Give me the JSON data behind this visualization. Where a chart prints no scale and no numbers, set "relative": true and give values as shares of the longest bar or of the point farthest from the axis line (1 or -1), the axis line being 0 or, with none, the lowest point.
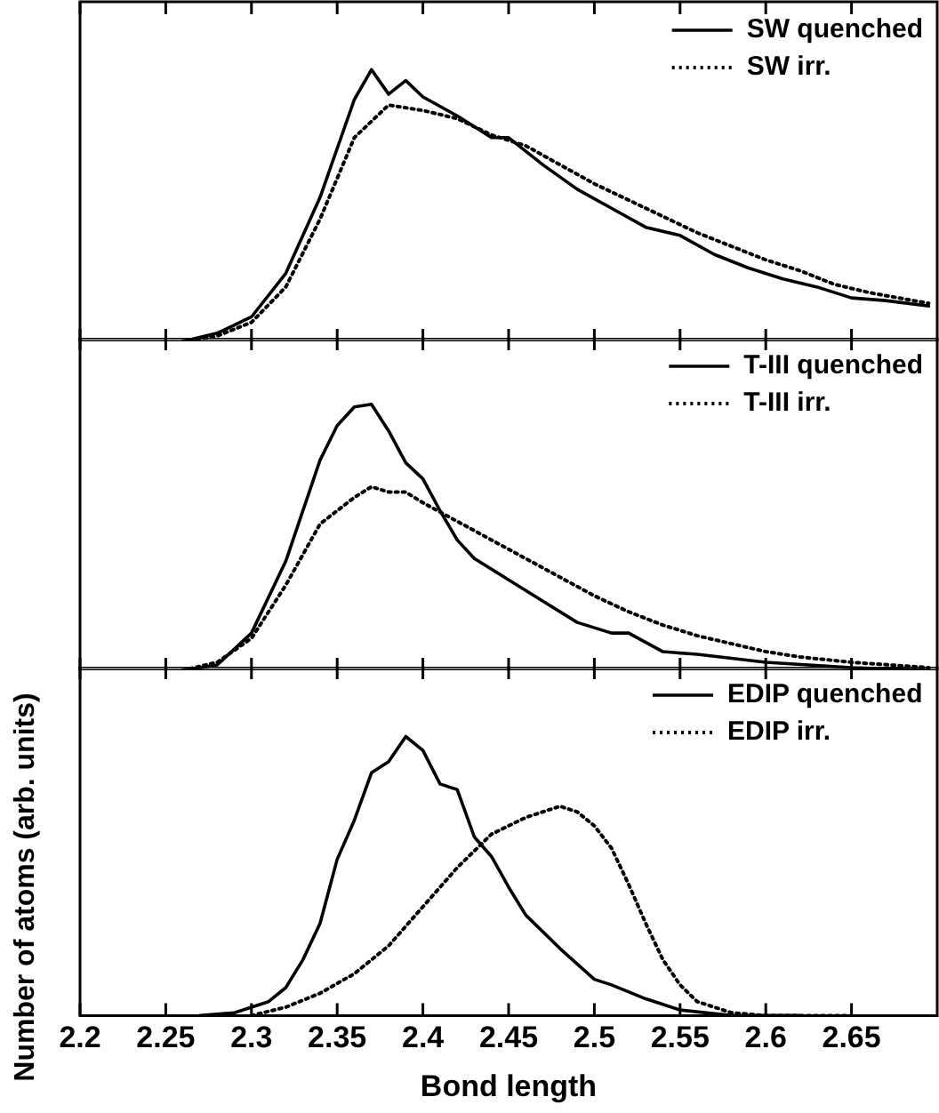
{
  "chart_data": [
    {
      "type": "line",
      "relative": true,
      "xlim": [
        2.2,
        2.7
      ],
      "xticks": [
        2.2,
        2.25,
        2.3,
        2.35,
        2.4,
        2.45,
        2.5,
        2.55,
        2.6,
        2.65
      ],
      "tick_labels": false,
      "legend": "top right",
      "marker": "none",
      "series": [
        {
          "name": "SW quenched",
          "color": "#000000",
          "line_style": "solid",
          "x": [
            2.26,
            2.28,
            2.3,
            2.32,
            2.34,
            2.35,
            2.36,
            2.37,
            2.38,
            2.39,
            2.4,
            2.42,
            2.44,
            2.45,
            2.47,
            2.49,
            2.51,
            2.53,
            2.55,
            2.57,
            2.59,
            2.61,
            2.63,
            2.65,
            2.67,
            2.695
          ],
          "values": [
            0,
            0.03,
            0.09,
            0.25,
            0.53,
            0.71,
            0.89,
            1,
            0.91,
            0.96,
            0.9,
            0.83,
            0.75,
            0.75,
            0.65,
            0.56,
            0.49,
            0.42,
            0.39,
            0.32,
            0.27,
            0.23,
            0.2,
            0.16,
            0.15,
            0.13
          ]
        },
        {
          "name": "SW irr.",
          "color": "#000000",
          "line_style": "dotted",
          "x": [
            2.26,
            2.28,
            2.3,
            2.32,
            2.34,
            2.36,
            2.38,
            2.4,
            2.42,
            2.44,
            2.46,
            2.48,
            2.5,
            2.52,
            2.54,
            2.56,
            2.58,
            2.6,
            2.62,
            2.64,
            2.66,
            2.695
          ],
          "values": [
            0,
            0.02,
            0.07,
            0.2,
            0.45,
            0.75,
            0.87,
            0.85,
            0.82,
            0.76,
            0.72,
            0.65,
            0.58,
            0.52,
            0.46,
            0.4,
            0.35,
            0.3,
            0.26,
            0.21,
            0.18,
            0.14
          ]
        }
      ]
    },
    {
      "type": "line",
      "relative": true,
      "xlim": [
        2.2,
        2.7
      ],
      "xticks": [
        2.2,
        2.25,
        2.3,
        2.35,
        2.4,
        2.45,
        2.5,
        2.55,
        2.6,
        2.65
      ],
      "tick_labels": false,
      "legend": "top right",
      "marker": "none",
      "ylabel": "Number of atoms (arb. units)",
      "series": [
        {
          "name": "T-III quenched",
          "color": "#000000",
          "line_style": "solid",
          "x": [
            2.26,
            2.28,
            2.3,
            2.32,
            2.34,
            2.35,
            2.36,
            2.37,
            2.38,
            2.39,
            2.4,
            2.41,
            2.42,
            2.43,
            2.45,
            2.47,
            2.49,
            2.51,
            2.52,
            2.54,
            2.56,
            2.6,
            2.65,
            2.695
          ],
          "values": [
            0,
            0.02,
            0.14,
            0.41,
            0.79,
            0.92,
            0.99,
            1,
            0.9,
            0.78,
            0.72,
            0.6,
            0.49,
            0.42,
            0.34,
            0.26,
            0.18,
            0.14,
            0.14,
            0.07,
            0.06,
            0.03,
            0.01,
            0
          ]
        },
        {
          "name": "T-III irr.",
          "color": "#000000",
          "line_style": "dotted",
          "x": [
            2.26,
            2.28,
            2.3,
            2.32,
            2.34,
            2.36,
            2.37,
            2.38,
            2.39,
            2.4,
            2.42,
            2.44,
            2.46,
            2.48,
            2.5,
            2.52,
            2.54,
            2.56,
            2.58,
            2.6,
            2.62,
            2.65,
            2.695
          ],
          "values": [
            0,
            0.03,
            0.12,
            0.32,
            0.55,
            0.65,
            0.69,
            0.67,
            0.67,
            0.63,
            0.56,
            0.49,
            0.42,
            0.35,
            0.28,
            0.22,
            0.17,
            0.13,
            0.1,
            0.07,
            0.05,
            0.03,
            0.01
          ]
        }
      ]
    },
    {
      "type": "line",
      "relative": true,
      "xlim": [
        2.2,
        2.7
      ],
      "xticks": [
        2.2,
        2.25,
        2.3,
        2.35,
        2.4,
        2.45,
        2.5,
        2.55,
        2.6,
        2.65
      ],
      "tick_labels": "x",
      "legend": "top right",
      "marker": "none",
      "xlabel": "Bond length",
      "series": [
        {
          "name": "EDIP quenched",
          "color": "#000000",
          "line_style": "solid",
          "x": [
            2.27,
            2.29,
            2.31,
            2.32,
            2.33,
            2.34,
            2.35,
            2.36,
            2.37,
            2.38,
            2.39,
            2.4,
            2.41,
            2.42,
            2.43,
            2.44,
            2.45,
            2.46,
            2.48,
            2.5,
            2.51,
            2.53,
            2.55,
            2.58,
            2.62
          ],
          "values": [
            0,
            0.01,
            0.05,
            0.1,
            0.2,
            0.33,
            0.56,
            0.7,
            0.87,
            0.91,
            1,
            0.95,
            0.83,
            0.81,
            0.64,
            0.57,
            0.46,
            0.36,
            0.24,
            0.13,
            0.11,
            0.06,
            0.02,
            0,
            0
          ]
        },
        {
          "name": "EDIP irr.",
          "color": "#000000",
          "line_style": "dotted",
          "x": [
            2.3,
            2.32,
            2.34,
            2.36,
            2.38,
            2.4,
            2.42,
            2.44,
            2.46,
            2.48,
            2.49,
            2.5,
            2.51,
            2.52,
            2.53,
            2.54,
            2.55,
            2.56,
            2.58,
            2.6,
            2.65
          ],
          "values": [
            0,
            0.03,
            0.08,
            0.15,
            0.25,
            0.39,
            0.53,
            0.65,
            0.71,
            0.75,
            0.73,
            0.68,
            0.6,
            0.47,
            0.33,
            0.2,
            0.11,
            0.05,
            0.01,
            0,
            0
          ]
        }
      ]
    }
  ]
}
